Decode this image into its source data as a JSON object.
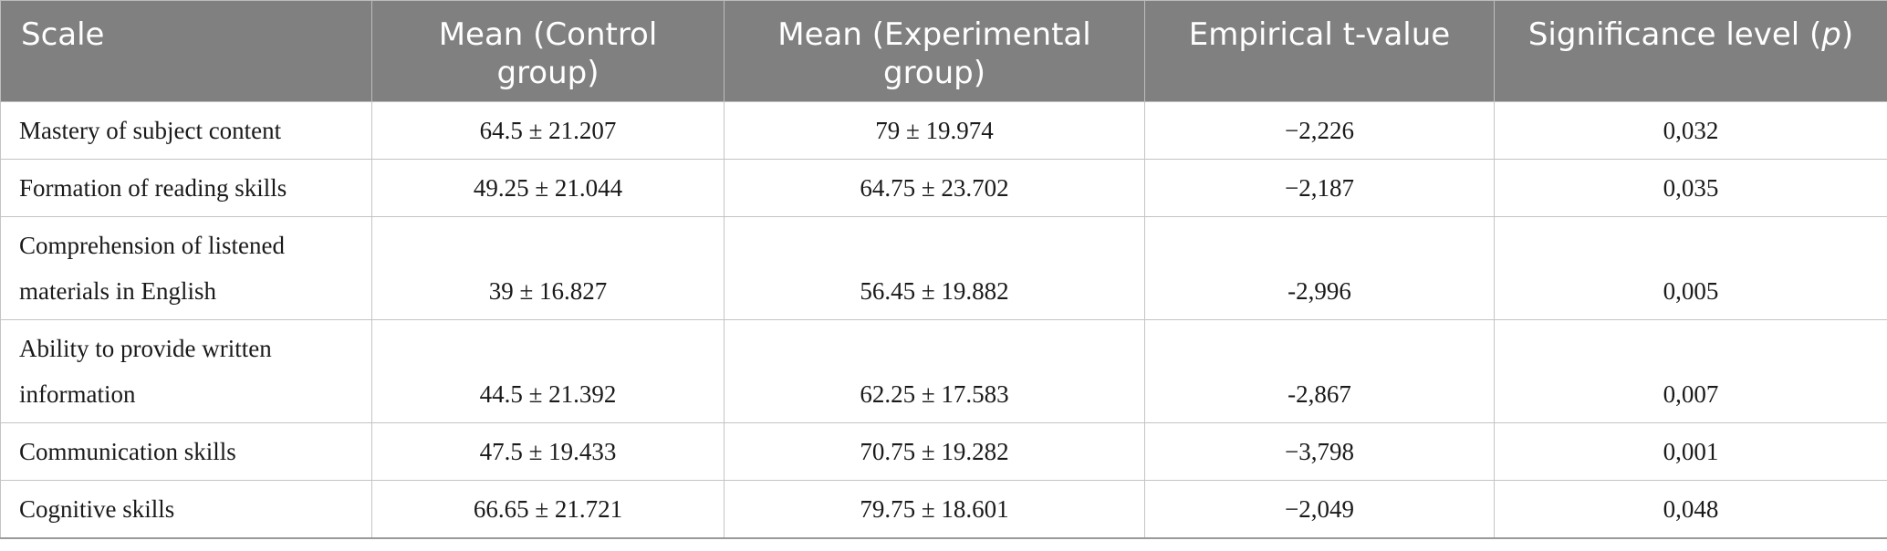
{
  "table": {
    "headers": [
      {
        "text": "Scale"
      },
      {
        "text": "Mean (Control group)"
      },
      {
        "text": "Mean (Experimental group)"
      },
      {
        "text": "Empirical t-value"
      },
      {
        "text": "Significance level (",
        "italic": "p",
        "suffix": ")"
      }
    ],
    "rows": [
      {
        "scale": "Mastery of subject content",
        "control": "64.5 ± 21.207",
        "experimental": "79 ± 19.974",
        "t": "−2,226",
        "p": "0,032"
      },
      {
        "scale": "Formation of reading skills",
        "control": "49.25 ± 21.044",
        "experimental": "64.75 ± 23.702",
        "t": "−2,187",
        "p": "0,035"
      },
      {
        "scale": "Comprehension of listened materials in English",
        "control": "39 ± 16.827",
        "experimental": "56.45 ± 19.882",
        "t": "-2,996",
        "p": "0,005"
      },
      {
        "scale": "Ability to provide written information",
        "control": "44.5 ± 21.392",
        "experimental": "62.25 ± 17.583",
        "t": "-2,867",
        "p": "0,007"
      },
      {
        "scale": "Communication skills",
        "control": "47.5 ± 19.433",
        "experimental": "70.75 ± 19.282",
        "t": "−3,798",
        "p": "0,001"
      },
      {
        "scale": "Cognitive skills",
        "control": "66.65 ± 21.721",
        "experimental": "79.75 ± 18.601",
        "t": "−2,049",
        "p": "0,048"
      }
    ]
  }
}
